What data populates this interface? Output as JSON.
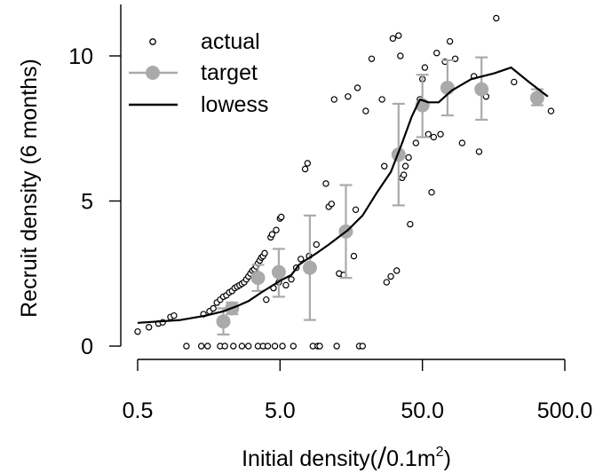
{
  "chart_data": {
    "type": "scatter",
    "title": "",
    "xlabel": "Initial density(/0.1m²)",
    "xlabel_parts": {
      "main": "Initial density(",
      "slash": "/",
      "unit": "0.1m",
      "sup": "2",
      "close": ")"
    },
    "ylabel": "Recruit density (6 months)",
    "x_scale": "log10",
    "xlim": [
      0.5,
      500
    ],
    "ylim": [
      0,
      11
    ],
    "x_ticks": [
      0.5,
      5,
      50,
      500
    ],
    "x_tick_labels": [
      "0.5",
      "5.0",
      "50.0",
      "500.0"
    ],
    "y_ticks": [
      0,
      5,
      10
    ],
    "y_tick_labels": [
      "0",
      "5",
      "10"
    ],
    "grid": false,
    "legend_position": "top-left",
    "legend": [
      {
        "key": "actual",
        "label": "actual"
      },
      {
        "key": "target",
        "label": "target"
      },
      {
        "key": "lowess",
        "label": "lowess"
      }
    ],
    "colors": {
      "actual": "#000000",
      "target": "#aaaaaa",
      "lowess": "#000000"
    },
    "series": [
      {
        "name": "actual",
        "kind": "points",
        "points": [
          [
            0.5,
            0.5
          ],
          [
            0.6,
            0.65
          ],
          [
            0.7,
            0.78
          ],
          [
            0.75,
            0.82
          ],
          [
            0.85,
            1.0
          ],
          [
            0.9,
            1.05
          ],
          [
            1.1,
            0.0
          ],
          [
            1.4,
            0.0
          ],
          [
            1.45,
            1.1
          ],
          [
            1.55,
            0.0
          ],
          [
            1.6,
            1.2
          ],
          [
            1.7,
            1.3
          ],
          [
            1.8,
            1.5
          ],
          [
            1.9,
            0.0
          ],
          [
            1.9,
            1.6
          ],
          [
            2.0,
            1.7
          ],
          [
            2.05,
            0.0
          ],
          [
            2.1,
            1.75
          ],
          [
            2.2,
            1.85
          ],
          [
            2.3,
            1.9
          ],
          [
            2.35,
            0.0
          ],
          [
            2.4,
            2.0
          ],
          [
            2.5,
            2.05
          ],
          [
            2.6,
            2.1
          ],
          [
            2.7,
            2.15
          ],
          [
            2.7,
            0.0
          ],
          [
            2.8,
            2.2
          ],
          [
            2.9,
            2.3
          ],
          [
            3.0,
            0.0
          ],
          [
            3.0,
            2.4
          ],
          [
            3.1,
            2.5
          ],
          [
            3.2,
            2.6
          ],
          [
            3.3,
            2.65
          ],
          [
            3.4,
            2.75
          ],
          [
            3.5,
            0.0
          ],
          [
            3.5,
            2.85
          ],
          [
            3.6,
            2.95
          ],
          [
            3.7,
            3.05
          ],
          [
            3.8,
            0.0
          ],
          [
            3.8,
            3.1
          ],
          [
            3.9,
            3.2
          ],
          [
            4.0,
            1.6
          ],
          [
            4.1,
            0.0
          ],
          [
            4.3,
            3.75
          ],
          [
            4.4,
            3.85
          ],
          [
            4.5,
            2.0
          ],
          [
            4.6,
            0.0
          ],
          [
            4.7,
            4.0
          ],
          [
            4.9,
            2.2
          ],
          [
            5.0,
            4.4
          ],
          [
            5.1,
            4.45
          ],
          [
            5.2,
            0.0
          ],
          [
            5.5,
            2.1
          ],
          [
            6.0,
            2.3
          ],
          [
            6.2,
            0.0
          ],
          [
            6.5,
            2.7
          ],
          [
            7.0,
            3.0
          ],
          [
            7.5,
            6.1
          ],
          [
            7.8,
            6.3
          ],
          [
            8.0,
            3.1
          ],
          [
            8.5,
            0.0
          ],
          [
            9.0,
            3.5
          ],
          [
            9.2,
            0.0
          ],
          [
            9.5,
            0.0
          ],
          [
            10.5,
            5.6
          ],
          [
            11.0,
            4.8
          ],
          [
            11.5,
            4.9
          ],
          [
            12.0,
            8.5
          ],
          [
            12.5,
            0.0
          ],
          [
            13.0,
            2.5
          ],
          [
            14.0,
            2.45
          ],
          [
            15.0,
            8.6
          ],
          [
            16.5,
            3.1
          ],
          [
            17.0,
            4.7
          ],
          [
            17.5,
            8.9
          ],
          [
            18.0,
            0.0
          ],
          [
            19.0,
            0.0
          ],
          [
            20.0,
            8.1
          ],
          [
            22.0,
            9.9
          ],
          [
            26.0,
            8.5
          ],
          [
            27.0,
            6.2
          ],
          [
            28.0,
            2.2
          ],
          [
            30.0,
            2.4
          ],
          [
            31.0,
            10.6
          ],
          [
            33.0,
            2.6
          ],
          [
            34.0,
            10.7
          ],
          [
            35.0,
            10.0
          ],
          [
            36.0,
            5.8
          ],
          [
            37.0,
            5.9
          ],
          [
            38.0,
            6.2
          ],
          [
            40.0,
            6.5
          ],
          [
            41.0,
            4.2
          ],
          [
            45.0,
            7.0
          ],
          [
            48.0,
            8.5
          ],
          [
            50.0,
            9.2
          ],
          [
            52.0,
            9.6
          ],
          [
            55.0,
            7.3
          ],
          [
            58.0,
            5.3
          ],
          [
            60.0,
            7.2
          ],
          [
            63.0,
            10.1
          ],
          [
            67.0,
            7.3
          ],
          [
            72.0,
            9.8
          ],
          [
            78.0,
            10.5
          ],
          [
            85.0,
            9.9
          ],
          [
            95.0,
            7.0
          ],
          [
            115.0,
            9.3
          ],
          [
            125.0,
            6.7
          ],
          [
            140.0,
            8.6
          ],
          [
            165.0,
            11.3
          ],
          [
            220.0,
            9.1
          ],
          [
            400.0,
            8.1
          ]
        ]
      },
      {
        "name": "target",
        "kind": "mean_with_error_bars",
        "points": [
          {
            "x": 2.0,
            "y": 0.85,
            "lo": 0.4,
            "hi": 1.3
          },
          {
            "x": 2.3,
            "y": 1.3,
            "lo": 1.1,
            "hi": 1.5
          },
          {
            "x": 3.5,
            "y": 2.35,
            "lo": 1.9,
            "hi": 2.8
          },
          {
            "x": 4.9,
            "y": 2.55,
            "lo": 1.7,
            "hi": 3.35
          },
          {
            "x": 8.1,
            "y": 2.7,
            "lo": 0.9,
            "hi": 4.5
          },
          {
            "x": 14.5,
            "y": 3.95,
            "lo": 2.35,
            "hi": 5.55
          },
          {
            "x": 34.0,
            "y": 6.6,
            "lo": 4.85,
            "hi": 8.35
          },
          {
            "x": 50.0,
            "y": 8.3,
            "lo": 7.2,
            "hi": 9.35
          },
          {
            "x": 75.0,
            "y": 8.9,
            "lo": 7.95,
            "hi": 9.85
          },
          {
            "x": 130.0,
            "y": 8.85,
            "lo": 7.8,
            "hi": 9.95
          },
          {
            "x": 320.0,
            "y": 8.55,
            "lo": 8.3,
            "hi": 8.85
          }
        ]
      },
      {
        "name": "lowess",
        "kind": "line",
        "points": [
          [
            0.5,
            0.8
          ],
          [
            1.0,
            0.9
          ],
          [
            1.5,
            1.05
          ],
          [
            2.0,
            1.2
          ],
          [
            2.5,
            1.38
          ],
          [
            3.0,
            1.55
          ],
          [
            3.7,
            1.85
          ],
          [
            4.3,
            2.05
          ],
          [
            5.0,
            2.25
          ],
          [
            6.0,
            2.45
          ],
          [
            6.8,
            2.8
          ],
          [
            7.5,
            2.95
          ],
          [
            9.0,
            3.2
          ],
          [
            11.0,
            3.5
          ],
          [
            15.0,
            4.0
          ],
          [
            19.0,
            4.5
          ],
          [
            24.0,
            5.3
          ],
          [
            30.0,
            6.0
          ],
          [
            36.0,
            7.0
          ],
          [
            42.0,
            7.9
          ],
          [
            48.0,
            8.5
          ],
          [
            55.0,
            8.4
          ],
          [
            65.0,
            8.4
          ],
          [
            80.0,
            8.8
          ],
          [
            110.0,
            9.2
          ],
          [
            160.0,
            9.4
          ],
          [
            210.0,
            9.6
          ],
          [
            280.0,
            9.1
          ],
          [
            380.0,
            8.6
          ]
        ]
      }
    ]
  }
}
